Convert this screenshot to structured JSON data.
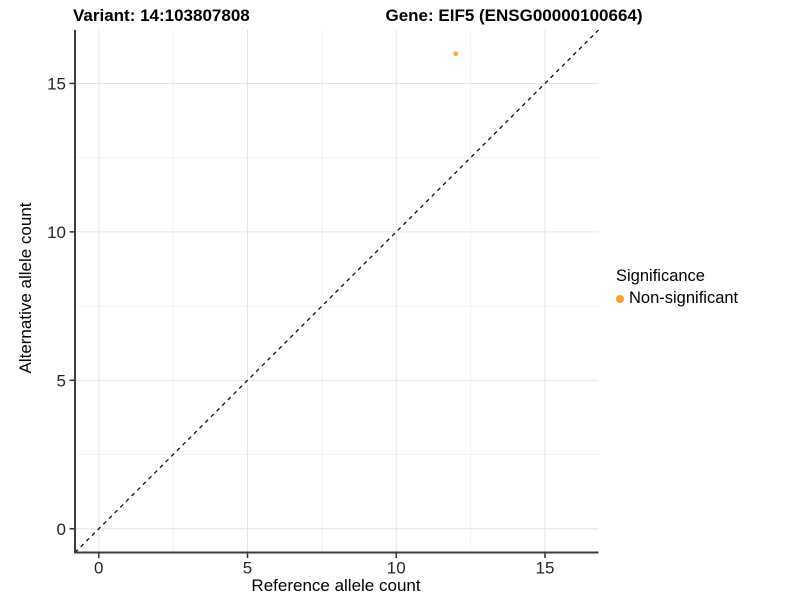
{
  "titles": {
    "variant": "Variant: 14:103807808",
    "gene": "Gene: EIF5 (ENSG00000100664)"
  },
  "axes": {
    "x_label": "Reference allele count",
    "y_label": "Alternative allele count"
  },
  "legend": {
    "title": "Significance",
    "items": [
      {
        "label": "Non-significant",
        "color": "#FF9D2E"
      }
    ]
  },
  "colors": {
    "point": "#FBA543",
    "legend_dot": "#FF9D2E",
    "axis_line": "#3c3c3c",
    "tick_mark": "#333333",
    "tick_label": "#262626",
    "grid_major": "#e4e4e4",
    "grid_minor": "#f1f1f1",
    "identity_line": "#000000",
    "background": "#ffffff"
  },
  "chart_data": {
    "type": "scatter",
    "title": "Variant: 14:103807808 — Gene: EIF5 (ENSG00000100664)",
    "xlabel": "Reference allele count",
    "ylabel": "Alternative allele count",
    "xlim": [
      -0.8,
      16.8
    ],
    "ylim": [
      -0.8,
      16.8
    ],
    "x_major_ticks": [
      0,
      5,
      10,
      15
    ],
    "y_major_ticks": [
      0,
      5,
      10,
      15
    ],
    "x_minor_ticks": [
      2.5,
      7.5,
      12.5
    ],
    "y_minor_ticks": [
      2.5,
      7.5,
      12.5
    ],
    "grid": true,
    "legend_position": "right",
    "series": [
      {
        "name": "Non-significant",
        "color": "#FBA543",
        "points": [
          {
            "x": 12,
            "y": 16
          }
        ]
      }
    ],
    "reference_line": {
      "kind": "identity",
      "style": "dashed",
      "from": [
        -0.8,
        -0.8
      ],
      "to": [
        16.8,
        16.8
      ]
    }
  }
}
